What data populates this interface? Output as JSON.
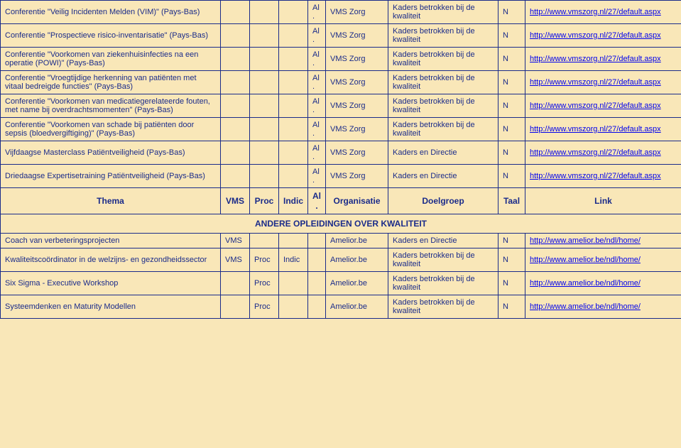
{
  "rows": [
    {
      "title": "Conferentie \"Veilig Incidenten Melden (VIM)\" (Pays-Bas)",
      "vms": "",
      "proc": "",
      "indic": "",
      "al": "Al.",
      "org": "VMS Zorg",
      "doel": "Kaders betrokken bij de kwaliteit",
      "taal": "N",
      "link": "http://www.vmszorg.nl/27/default.aspx"
    },
    {
      "title": "Conferentie \"Prospectieve risico-inventarisatie\" (Pays-Bas)",
      "vms": "",
      "proc": "",
      "indic": "",
      "al": "Al.",
      "org": "VMS Zorg",
      "doel": "Kaders betrokken bij de kwaliteit",
      "taal": "N",
      "link": "http://www.vmszorg.nl/27/default.aspx"
    },
    {
      "title": "Conferentie \"Voorkomen van ziekenhuisinfecties na een operatie (POWI)\" (Pays-Bas)",
      "vms": "",
      "proc": "",
      "indic": "",
      "al": "Al.",
      "org": "VMS Zorg",
      "doel": "Kaders betrokken bij de kwaliteit",
      "taal": "N",
      "link": "http://www.vmszorg.nl/27/default.aspx"
    },
    {
      "title": "Conferentie \"Vroegtijdige herkenning van patiënten met vitaal bedreigde functies\" (Pays-Bas)",
      "vms": "",
      "proc": "",
      "indic": "",
      "al": "Al.",
      "org": "VMS Zorg",
      "doel": "Kaders betrokken bij de kwaliteit",
      "taal": "N",
      "link": "http://www.vmszorg.nl/27/default.aspx"
    },
    {
      "title": "Conferentie \"Voorkomen van medicatiegerelateerde fouten, met name bij overdrachtsmomenten\" (Pays-Bas)",
      "vms": "",
      "proc": "",
      "indic": "",
      "al": "Al.",
      "org": "VMS Zorg",
      "doel": "Kaders betrokken bij de kwaliteit",
      "taal": "N",
      "link": "http://www.vmszorg.nl/27/default.aspx"
    },
    {
      "title": "Conferentie \"Voorkomen van schade bij patiënten door sepsis (bloedvergiftiging)\" (Pays-Bas)",
      "vms": "",
      "proc": "",
      "indic": "",
      "al": "Al.",
      "org": "VMS Zorg",
      "doel": "Kaders betrokken bij de kwaliteit",
      "taal": "N",
      "link": "http://www.vmszorg.nl/27/default.aspx"
    },
    {
      "title": "Vijfdaagse Masterclass Patiëntveiligheid (Pays-Bas)",
      "vms": "",
      "proc": "",
      "indic": "",
      "al": "Al.",
      "org": "VMS Zorg",
      "doel": "Kaders en Directie",
      "taal": "N",
      "link": "http://www.vmszorg.nl/27/default.aspx"
    },
    {
      "title": "Driedaagse Expertisetraining Patiëntveiligheid (Pays-Bas)",
      "vms": "",
      "proc": "",
      "indic": "",
      "al": "Al.",
      "org": "VMS Zorg",
      "doel": "Kaders en Directie",
      "taal": "N",
      "link": "http://www.vmszorg.nl/27/default.aspx"
    }
  ],
  "headers": {
    "thema": "Thema",
    "vms": "VMS",
    "proc": "Proc",
    "indic": "Indic",
    "al": "Al.",
    "org": "Organisatie",
    "doel": "Doelgroep",
    "taal": "Taal",
    "link": "Link"
  },
  "section_title": "ANDERE OPLEIDINGEN OVER KWALITEIT",
  "rows2": [
    {
      "title": "Coach van verbeteringsprojecten",
      "vms": "VMS",
      "proc": "",
      "indic": "",
      "al": "",
      "org": "Amelior.be",
      "doel": "Kaders en Directie",
      "taal": "N",
      "link": "http://www.amelior.be/ndl/home/"
    },
    {
      "title": "Kwaliteitscoördinator in de welzijns- en gezondheidssector",
      "vms": "VMS",
      "proc": "Proc",
      "indic": "Indic",
      "al": "",
      "org": "Amelior.be",
      "doel": "Kaders betrokken bij de kwaliteit",
      "taal": "N",
      "link": "http://www.amelior.be/ndl/home/"
    },
    {
      "title": "Six Sigma - Executive Workshop",
      "vms": "",
      "proc": "Proc",
      "indic": "",
      "al": "",
      "org": "Amelior.be",
      "doel": "Kaders betrokken bij de kwaliteit",
      "taal": "N",
      "link": "http://www.amelior.be/ndl/home/"
    },
    {
      "title": "Systeemdenken en Maturity Modellen",
      "vms": "",
      "proc": "Proc",
      "indic": "",
      "al": "",
      "org": "Amelior.be",
      "doel": "Kaders betrokken bij de kwaliteit",
      "taal": "N",
      "link": "http://www.amelior.be/ndl/home/"
    }
  ]
}
